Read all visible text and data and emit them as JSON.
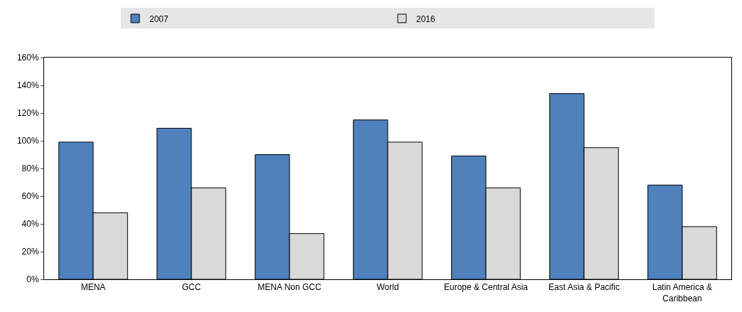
{
  "chart_data": {
    "type": "bar",
    "categories": [
      "MENA",
      "GCC",
      "MENA Non GCC",
      "World",
      "Europe & Central Asia",
      "East Asia & Pacific",
      "Latin America & Caribbean"
    ],
    "series": [
      {
        "name": "2007",
        "color": "#4f81bd",
        "values": [
          99,
          109,
          90,
          115,
          89,
          134,
          68
        ]
      },
      {
        "name": "2016",
        "color": "#d9d9d9",
        "values": [
          48,
          66,
          33,
          99,
          66,
          95,
          38
        ]
      }
    ],
    "ylim": [
      0,
      160
    ],
    "yticks": [
      {
        "value": 0,
        "label": "0%"
      },
      {
        "value": 20,
        "label": "20%"
      },
      {
        "value": 40,
        "label": "40%"
      },
      {
        "value": 60,
        "label": "60%"
      },
      {
        "value": 80,
        "label": "80%"
      },
      {
        "value": 100,
        "label": "100%"
      },
      {
        "value": 120,
        "label": "120%"
      },
      {
        "value": 140,
        "label": "140%"
      },
      {
        "value": 160,
        "label": "160%"
      }
    ],
    "grid": false,
    "legend": "top"
  }
}
